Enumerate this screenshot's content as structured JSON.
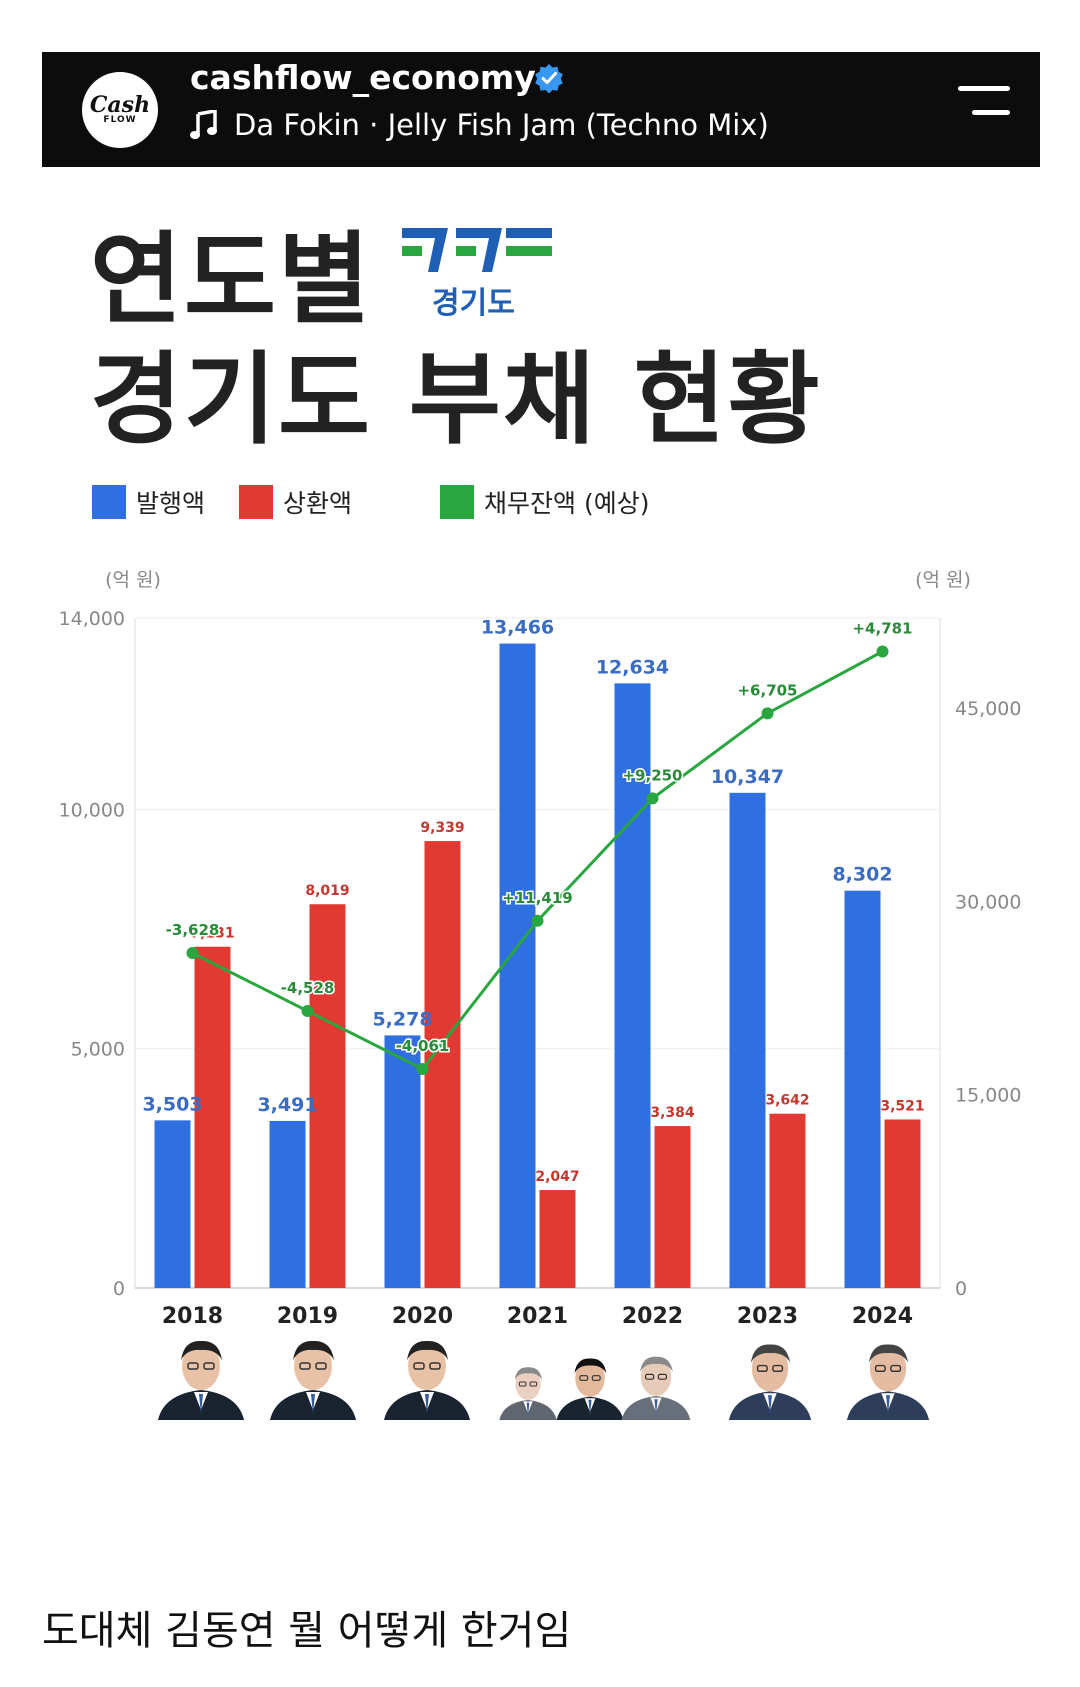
{
  "header": {
    "account": "cashflow_economy",
    "avatar_line1": "Cash",
    "avatar_line2": "FLOW",
    "music": "Da Fokin · Jelly Fish Jam (Techno Mix)"
  },
  "title": {
    "line1": "연도별",
    "line2": "경기도 부채 현황",
    "logo_text": "경기도"
  },
  "legend": [
    {
      "label": "발행액",
      "color": "#2f6fe0"
    },
    {
      "label": "상환액",
      "color": "#e23a33"
    },
    {
      "label": "채무잔액 (예상)",
      "color": "#2aa640"
    }
  ],
  "chart_data": {
    "type": "bar",
    "categories": [
      "2018",
      "2019",
      "2020",
      "2021",
      "2022",
      "2023",
      "2024"
    ],
    "series": [
      {
        "name": "발행액",
        "values": [
          3503,
          3491,
          5278,
          13466,
          12634,
          10347,
          8302
        ],
        "labels": [
          "3,503",
          "3,491",
          "5,278",
          "13,466",
          "12,634",
          "10,347",
          "8,302"
        ],
        "color": "#2f6fe0"
      },
      {
        "name": "상환액",
        "values": [
          7131,
          8019,
          9339,
          2047,
          3384,
          3642,
          3521
        ],
        "labels": [
          "7,131",
          "8,019",
          "9,339",
          "2,047",
          "3,384",
          "3,642",
          "3,521"
        ],
        "color": "#e23a33"
      }
    ],
    "line_series": {
      "name": "채무잔액 (예상)",
      "axis": "right",
      "values": [
        26000,
        21500,
        17000,
        28500,
        38000,
        44600,
        49400
      ],
      "labels": [
        "-3,628",
        "-4,528",
        "-4,061",
        "+11,419",
        "+9,250",
        "+6,705",
        "+4,781"
      ],
      "color": "#2aa640"
    },
    "left_axis": {
      "unit": "(억 원)",
      "ticks": [
        0,
        5000,
        10000,
        14000
      ],
      "tick_labels": [
        "0",
        "5,000",
        "10,000",
        "14,000"
      ],
      "range": [
        0,
        14000
      ]
    },
    "right_axis": {
      "unit": "(억 원)",
      "ticks": [
        0,
        15000,
        30000,
        45000
      ],
      "tick_labels": [
        "0",
        "15,000",
        "30,000",
        "45,000"
      ],
      "range": [
        0,
        52000
      ]
    },
    "grid": true
  },
  "caption": "도대체 김동연 뭘 어떻게 한거임"
}
